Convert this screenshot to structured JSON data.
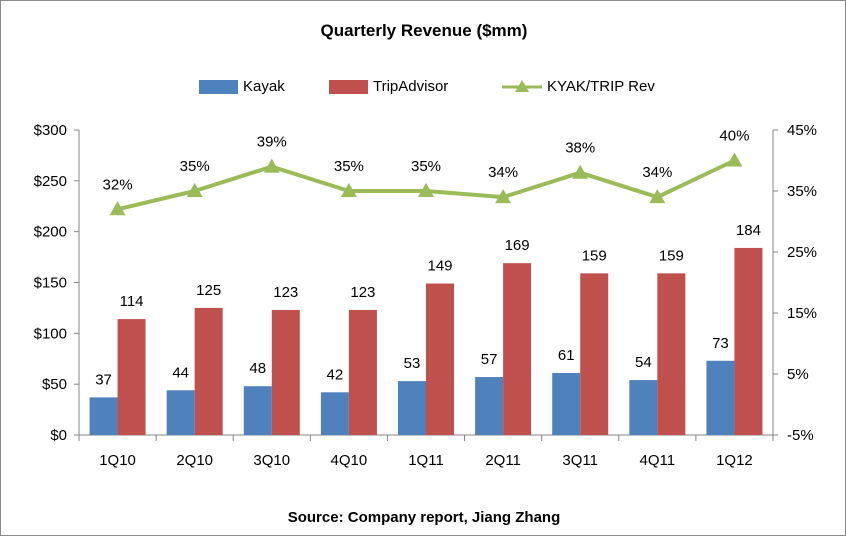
{
  "chart_data": {
    "type": "bar",
    "title": "Quarterly Revenue ($mm)",
    "source": "Source: Company report, Jiang Zhang",
    "categories": [
      "1Q10",
      "2Q10",
      "3Q10",
      "4Q10",
      "1Q11",
      "2Q11",
      "3Q11",
      "4Q11",
      "1Q12"
    ],
    "series": [
      {
        "name": "Kayak",
        "type": "bar",
        "axis": "left",
        "color": "#4f81bd",
        "values": [
          37,
          44,
          48,
          42,
          53,
          57,
          61,
          54,
          73
        ]
      },
      {
        "name": "TripAdvisor",
        "type": "bar",
        "axis": "left",
        "color": "#c0504d",
        "values": [
          114,
          125,
          123,
          123,
          149,
          169,
          159,
          159,
          184
        ]
      },
      {
        "name": "KYAK/TRIP Rev",
        "type": "line",
        "axis": "right",
        "color": "#9bbb59",
        "marker": "triangle",
        "values": [
          32,
          35,
          39,
          35,
          35,
          34,
          38,
          34,
          40
        ],
        "labels": [
          "32%",
          "35%",
          "39%",
          "35%",
          "35%",
          "34%",
          "38%",
          "34%",
          "40%"
        ]
      }
    ],
    "y_left": {
      "min": 0,
      "max": 300,
      "ticks": [
        0,
        50,
        100,
        150,
        200,
        250,
        300
      ],
      "tick_labels": [
        "$0",
        "$50",
        "$100",
        "$150",
        "$200",
        "$250",
        "$300"
      ]
    },
    "y_right": {
      "min": -5,
      "max": 45,
      "ticks": [
        -5,
        5,
        15,
        25,
        35,
        45
      ],
      "tick_labels": [
        "-5%",
        "5%",
        "15%",
        "25%",
        "35%",
        "45%"
      ]
    },
    "grid": false,
    "legend_position": "top"
  }
}
